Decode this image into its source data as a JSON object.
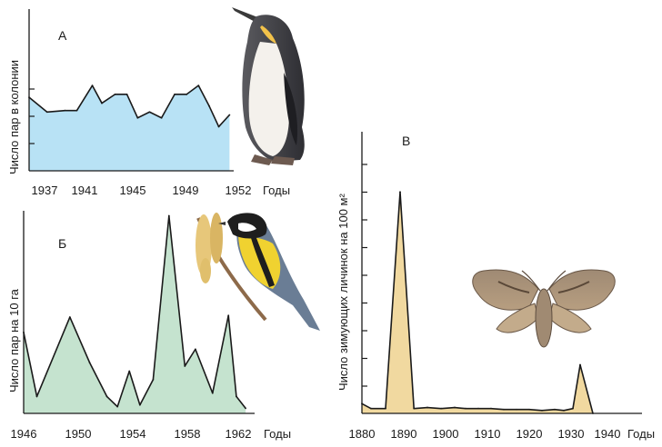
{
  "chart_data": [
    {
      "type": "area",
      "panel_letter": "А",
      "ylabel": "Число пар в колонии",
      "xlabel": "Годы",
      "x_ticks": [
        "1937",
        "1941",
        "1945",
        "1949",
        "1952"
      ],
      "xlim": [
        1935.5,
        1952.5
      ],
      "x": [
        1935.5,
        1937,
        1938.5,
        1939.5,
        1940.8,
        1941.6,
        1942.7,
        1943.7,
        1944.6,
        1945.6,
        1946.6,
        1947.7,
        1948.7,
        1949.7,
        1950.6,
        1951.4,
        1952.3
      ],
      "values": [
        2.5,
        2.0,
        2.05,
        2.05,
        2.9,
        2.3,
        2.6,
        2.6,
        1.8,
        2.0,
        1.8,
        2.6,
        2.6,
        2.9,
        2.2,
        1.5,
        1.9
      ],
      "ylim": [
        0,
        5.5
      ],
      "fill": "#b8e2f5",
      "line": "#1a1a1a"
    },
    {
      "type": "area",
      "panel_letter": "Б",
      "ylabel": "Число пар на 10 га",
      "xlabel": "Годы",
      "x_ticks": [
        "1946",
        "1950",
        "1954",
        "1958",
        "1962"
      ],
      "xlim": [
        1946,
        1963
      ],
      "x": [
        1946,
        1947,
        1949.5,
        1951,
        1952.3,
        1953.1,
        1954,
        1954.8,
        1955.8,
        1957,
        1958.2,
        1959,
        1960.3,
        1961.5,
        1962.1,
        1962.8
      ],
      "values": [
        4.8,
        1.0,
        5.7,
        3.0,
        1.0,
        0.4,
        2.5,
        0.5,
        2.0,
        11.7,
        2.8,
        3.8,
        1.2,
        5.8,
        1.0,
        0.3
      ],
      "ylim": [
        0,
        12
      ],
      "fill": "#c5e3cf",
      "line": "#1a1a1a"
    },
    {
      "type": "area",
      "panel_letter": "В",
      "ylabel": "Число зимующих личинок на 100 м²",
      "xlabel": "Годы",
      "x_ticks": [
        "1880",
        "1890",
        "1900",
        "1910",
        "1920",
        "1930",
        "1940"
      ],
      "xlim": [
        1878,
        1944
      ],
      "x": [
        1878,
        1880.5,
        1884.5,
        1888.5,
        1892.3,
        1896,
        1899.8,
        1903.5,
        1906.5,
        1910,
        1913.5,
        1917,
        1920.5,
        1924,
        1927.5,
        1931,
        1933.5,
        1936,
        1938,
        1941.5
      ],
      "values": [
        10,
        5,
        5,
        228,
        5,
        6,
        5,
        6,
        5,
        5,
        5,
        4,
        4,
        4,
        3,
        4,
        3,
        5,
        50,
        0
      ],
      "ylim": [
        0,
        290
      ],
      "fill": "#f1d9a0",
      "line": "#1a1a1a"
    }
  ]
}
